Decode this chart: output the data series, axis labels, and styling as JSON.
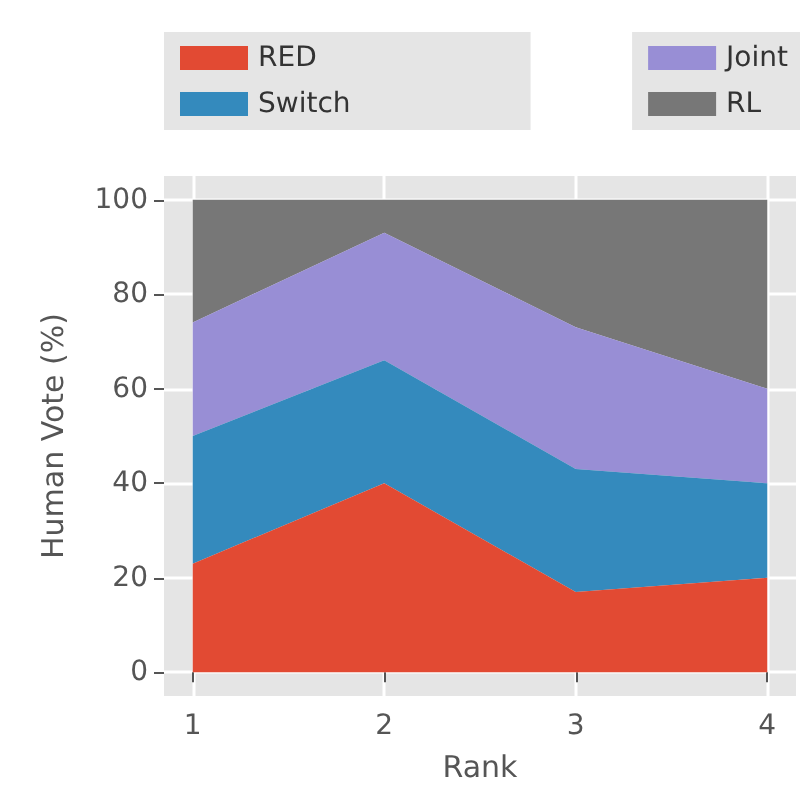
{
  "chart_data": {
    "type": "area",
    "stacked": true,
    "xlabel": "Rank",
    "ylabel": "Human Vote (%)",
    "x": [
      1,
      2,
      3,
      4
    ],
    "series": [
      {
        "name": "RED",
        "color": "#e24a33",
        "values": [
          23,
          40,
          17,
          20
        ]
      },
      {
        "name": "Switch",
        "color": "#348abd",
        "values": [
          27,
          26,
          26,
          20
        ]
      },
      {
        "name": "Joint",
        "color": "#988ed5",
        "values": [
          24,
          27,
          30,
          20
        ]
      },
      {
        "name": "RL",
        "color": "#777777",
        "values": [
          26,
          7,
          27,
          40
        ]
      }
    ],
    "xlim": [
      0.85,
      4.15
    ],
    "xticks": [
      1,
      2,
      3,
      4
    ],
    "ylim": [
      -5,
      105
    ],
    "yticks": [
      0,
      20,
      40,
      60,
      80,
      100
    ],
    "grid": true,
    "legend": "top"
  }
}
